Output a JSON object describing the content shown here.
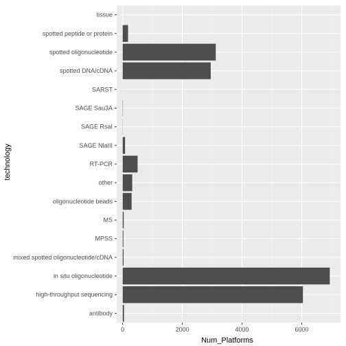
{
  "chart_data": {
    "type": "bar",
    "orientation": "horizontal",
    "xlabel": "Num_Platforms",
    "ylabel": "technology",
    "xlim": [
      -200,
      7300
    ],
    "x_ticks": [
      0,
      2000,
      4000,
      6000
    ],
    "categories": [
      "antibody",
      "high-throughput sequencing",
      "in situ oligonucleotide",
      "mixed spotted oligonucleotide/cDNA",
      "MPSS",
      "MS",
      "oligonucleotide beads",
      "other",
      "RT-PCR",
      "SAGE NlaIII",
      "SAGE RsaI",
      "SAGE Sau3A",
      "SARST",
      "spotted DNA/cDNA",
      "spotted oligonucleotide",
      "spotted peptide or protein",
      "tissue"
    ],
    "values": [
      45,
      6040,
      6940,
      30,
      25,
      35,
      300,
      320,
      500,
      80,
      5,
      10,
      3,
      2950,
      3120,
      180,
      1
    ],
    "grid": true,
    "legend": "none",
    "colors": {
      "panel_background": "#ebebeb",
      "major_grid": "#ffffff",
      "minor_grid": "#f5f5f5",
      "bar_fill": "#4d4d4d",
      "tick_color": "#333333",
      "tick_label": "#4d4d4d"
    }
  }
}
